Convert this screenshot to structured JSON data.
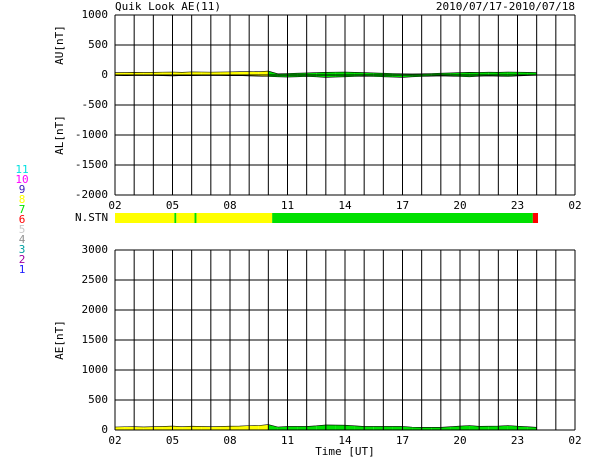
{
  "chart_data": [
    {
      "type": "line",
      "title": "Quik Look AE(11)",
      "subtitle": "2010/07/17-2010/07/18",
      "y_labels": [
        "AU[nT]",
        "AL[nT]"
      ],
      "xlim": [
        0,
        24
      ],
      "xticks": [
        {
          "value": 0,
          "label": "02"
        },
        {
          "value": 3,
          "label": "05"
        },
        {
          "value": 6,
          "label": "08"
        },
        {
          "value": 9,
          "label": "11"
        },
        {
          "value": 12,
          "label": "14"
        },
        {
          "value": 15,
          "label": "17"
        },
        {
          "value": 18,
          "label": "20"
        },
        {
          "value": 21,
          "label": "23"
        },
        {
          "value": 24,
          "label": "02"
        }
      ],
      "xgrid": [
        0,
        1,
        2,
        3,
        4,
        5,
        6,
        7,
        8,
        9,
        10,
        11,
        12,
        13,
        14,
        15,
        16,
        17,
        18,
        19,
        20,
        21,
        22,
        23,
        24
      ],
      "ylim": [
        -2000,
        1000
      ],
      "yticks": [
        -2000,
        -1500,
        -1000,
        -500,
        0,
        500,
        1000
      ],
      "x": [
        0,
        0.5,
        1,
        1.5,
        2,
        2.5,
        3,
        3.5,
        4,
        4.5,
        5,
        5.5,
        6,
        6.5,
        7,
        7.5,
        8,
        8.5,
        9,
        9.5,
        10,
        10.5,
        11,
        11.5,
        12,
        12.5,
        13,
        13.5,
        14,
        14.5,
        15,
        15.5,
        16,
        16.5,
        17,
        17.5,
        18,
        18.5,
        19,
        19.5,
        20,
        20.5,
        21,
        21.5,
        22
      ],
      "series": [
        {
          "name": "AU",
          "values": [
            40,
            42,
            45,
            43,
            45,
            48,
            50,
            45,
            52,
            50,
            48,
            50,
            52,
            55,
            58,
            55,
            65,
            20,
            25,
            30,
            35,
            40,
            45,
            48,
            50,
            45,
            40,
            35,
            30,
            25,
            20,
            18,
            20,
            25,
            30,
            35,
            40,
            45,
            42,
            48,
            45,
            50,
            48,
            45,
            40
          ]
        },
        {
          "name": "AL",
          "values": [
            -10,
            -12,
            -10,
            -8,
            -10,
            -12,
            -15,
            -10,
            -12,
            -10,
            -8,
            -10,
            -12,
            -10,
            -15,
            -20,
            -25,
            -30,
            -35,
            -30,
            -25,
            -30,
            -40,
            -35,
            -30,
            -25,
            -20,
            -25,
            -30,
            -35,
            -40,
            -30,
            -25,
            -20,
            -15,
            -20,
            -25,
            -30,
            -20,
            -15,
            -20,
            -25,
            -15,
            -10,
            -5
          ]
        }
      ]
    },
    {
      "type": "station-bar",
      "label": "N.STN",
      "legend": [
        {
          "value": 11,
          "color": "#00e0e0"
        },
        {
          "value": 10,
          "color": "#ff00ff"
        },
        {
          "value": 9,
          "color": "#4020c0"
        },
        {
          "value": 8,
          "color": "#ffff00"
        },
        {
          "value": 7,
          "color": "#00e000"
        },
        {
          "value": 6,
          "color": "#ff0000"
        },
        {
          "value": 5,
          "color": "#c8c8c8"
        },
        {
          "value": 4,
          "color": "#909090"
        },
        {
          "value": 3,
          "color": "#00a0a0"
        },
        {
          "value": 2,
          "color": "#a000a0"
        },
        {
          "value": 1,
          "color": "#2020ff"
        }
      ],
      "segments": [
        {
          "start": 0,
          "end": 3.1,
          "count": 8
        },
        {
          "start": 3.1,
          "end": 3.2,
          "count": 7
        },
        {
          "start": 3.2,
          "end": 4.15,
          "count": 8
        },
        {
          "start": 4.15,
          "end": 4.25,
          "count": 7
        },
        {
          "start": 4.25,
          "end": 8.2,
          "count": 8
        },
        {
          "start": 8.2,
          "end": 21.8,
          "count": 7
        },
        {
          "start": 21.8,
          "end": 22.07,
          "count": 6
        }
      ]
    },
    {
      "type": "area",
      "y_label": "AE[nT]",
      "x_label": "Time [UT]",
      "ylim": [
        0,
        3000
      ],
      "yticks": [
        0,
        500,
        1000,
        1500,
        2000,
        2500,
        3000
      ],
      "values": [
        50,
        54,
        55,
        51,
        55,
        60,
        65,
        55,
        64,
        60,
        56,
        60,
        64,
        65,
        73,
        75,
        90,
        50,
        60,
        60,
        60,
        70,
        85,
        83,
        80,
        70,
        60,
        60,
        60,
        60,
        60,
        48,
        45,
        45,
        45,
        55,
        65,
        75,
        62,
        63,
        65,
        75,
        63,
        55,
        45
      ]
    }
  ]
}
